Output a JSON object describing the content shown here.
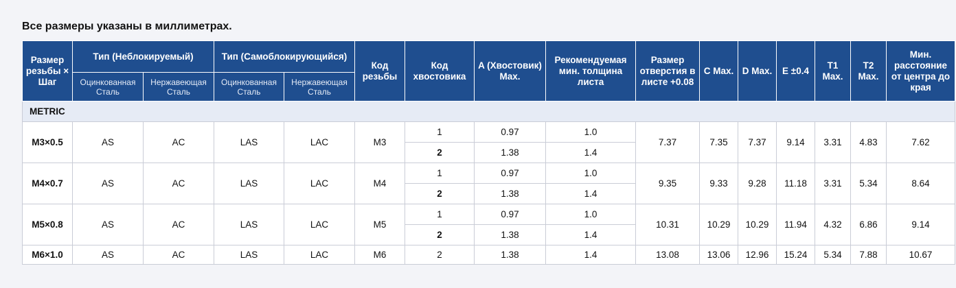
{
  "note": "Все размеры указаны в миллиметрах.",
  "header": {
    "thread_size": "Размер резьбы × Шаг",
    "type_nonlocking": "Тип (Неблокируемый)",
    "type_selflocking": "Тип (Самоблокирующийся)",
    "galvanized_steel": "Оцинкованная Сталь",
    "stainless_steel": "Нержавеющая Сталь",
    "thread_code": "Код резьбы",
    "shank_code": "Код хвостовика",
    "a_shank": "A (Хвостовик) Max.",
    "min_sheet": "Рекомендуемая мин. толщина листа",
    "hole_size": "Размер отверстия в листе +0.08",
    "c": "C Max.",
    "d": "D Max.",
    "e": "E ±0.4",
    "t1": "T1 Max.",
    "t2": "T2 Max.",
    "min_edge": "Мин. расстояние от центра до края"
  },
  "section": "METRIC",
  "rows": [
    {
      "size": "M3×0.5",
      "as": "AS",
      "ac": "AC",
      "las": "LAS",
      "lac": "LAC",
      "code": "M3",
      "shank": [
        {
          "code": "1",
          "a": "0.97",
          "min": "1.0"
        },
        {
          "code": "2",
          "a": "1.38",
          "min": "1.4"
        }
      ],
      "hole": "7.37",
      "c": "7.35",
      "d": "7.37",
      "e": "9.14",
      "t1": "3.31",
      "t2": "4.83",
      "edge": "7.62"
    },
    {
      "size": "M4×0.7",
      "as": "AS",
      "ac": "AC",
      "las": "LAS",
      "lac": "LAC",
      "code": "M4",
      "shank": [
        {
          "code": "1",
          "a": "0.97",
          "min": "1.0"
        },
        {
          "code": "2",
          "a": "1.38",
          "min": "1.4"
        }
      ],
      "hole": "9.35",
      "c": "9.33",
      "d": "9.28",
      "e": "11.18",
      "t1": "3.31",
      "t2": "5.34",
      "edge": "8.64"
    },
    {
      "size": "M5×0.8",
      "as": "AS",
      "ac": "AC",
      "las": "LAS",
      "lac": "LAC",
      "code": "M5",
      "shank": [
        {
          "code": "1",
          "a": "0.97",
          "min": "1.0"
        },
        {
          "code": "2",
          "a": "1.38",
          "min": "1.4"
        }
      ],
      "hole": "10.31",
      "c": "10.29",
      "d": "10.29",
      "e": "11.94",
      "t1": "4.32",
      "t2": "6.86",
      "edge": "9.14"
    },
    {
      "size": "M6×1.0",
      "as": "AS",
      "ac": "AC",
      "las": "LAS",
      "lac": "LAC",
      "code": "M6",
      "shank": [
        {
          "code": "2",
          "a": "1.38",
          "min": "1.4"
        }
      ],
      "hole": "13.08",
      "c": "13.06",
      "d": "12.96",
      "e": "15.24",
      "t1": "5.34",
      "t2": "7.88",
      "edge": "10.67"
    }
  ]
}
